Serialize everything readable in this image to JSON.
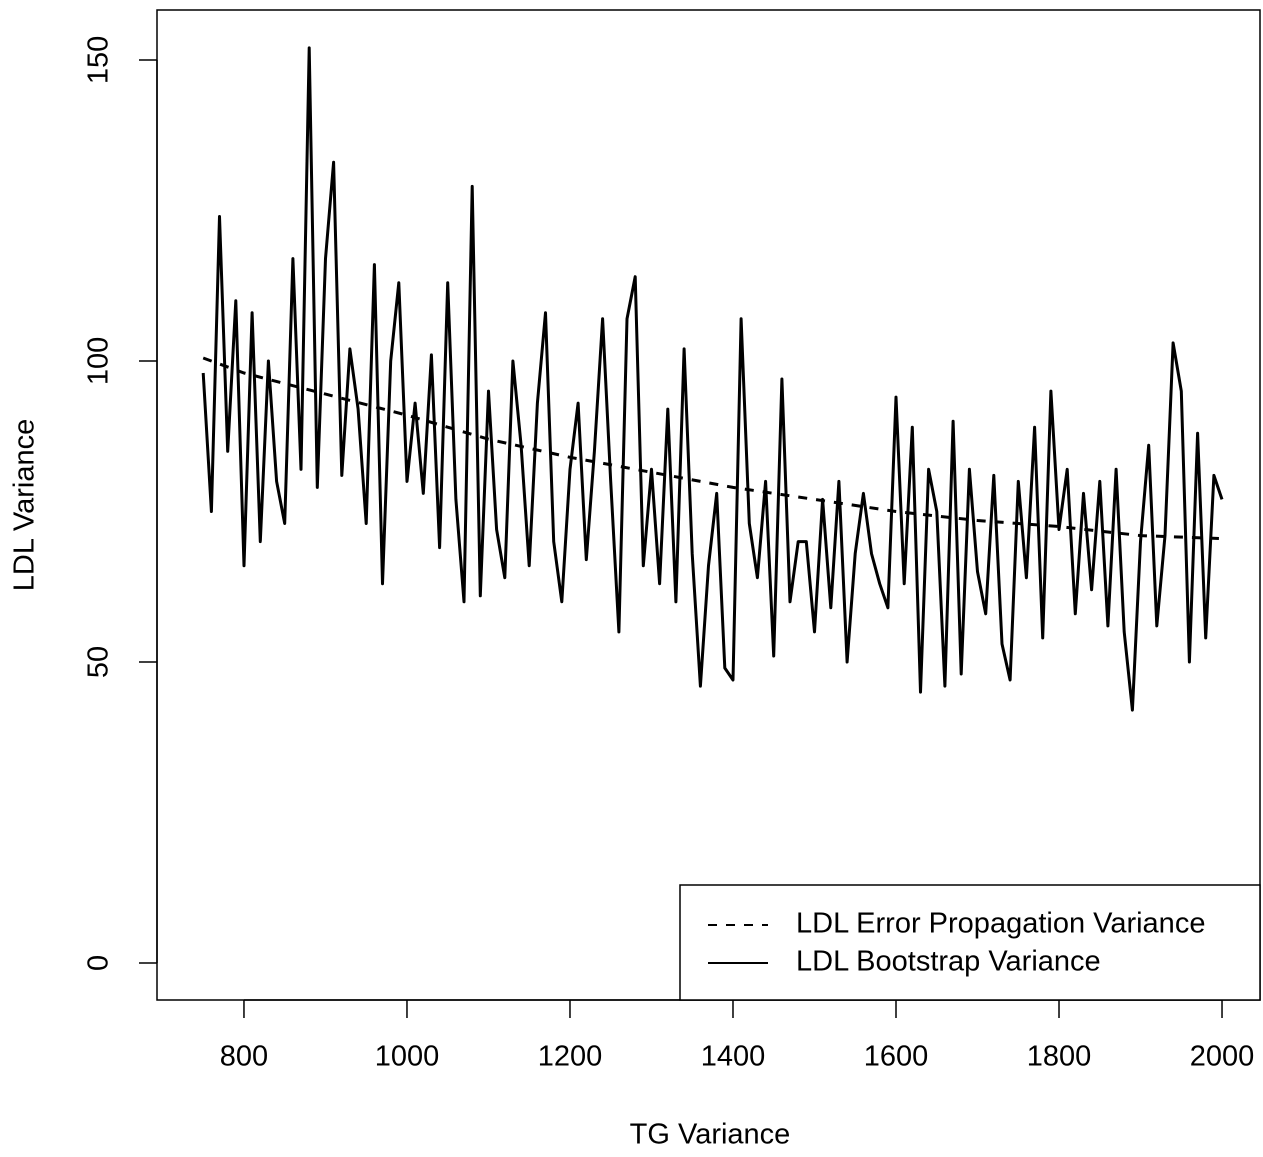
{
  "chart_data": {
    "type": "line",
    "xlabel": "TG Variance",
    "ylabel": "LDL Variance",
    "xlim": [
      693.3,
      2046.6
    ],
    "ylim": [
      -6.15,
      158.3
    ],
    "xticks": [
      800,
      1000,
      1200,
      1400,
      1600,
      1800,
      2000
    ],
    "yticks": [
      0,
      50,
      100,
      150
    ],
    "legend": "bottomright",
    "series": [
      {
        "name": "LDL Error Propagation Variance",
        "color": "#000000",
        "dash": true,
        "x": [
          750,
          800,
          900,
          1000,
          1100,
          1200,
          1300,
          1400,
          1500,
          1600,
          1700,
          1800,
          1900,
          2000
        ],
        "values": [
          100.5,
          98,
          94.5,
          91,
          87,
          84,
          81.5,
          79,
          77,
          75,
          73.5,
          72.5,
          71,
          70.5
        ]
      },
      {
        "name": "LDL Bootstrap Variance",
        "color": "#000000",
        "dash": false,
        "x": [
          750,
          760,
          770,
          780,
          790,
          800,
          810,
          820,
          830,
          840,
          850,
          860,
          870,
          880,
          890,
          900,
          910,
          920,
          930,
          940,
          950,
          960,
          970,
          980,
          990,
          1000,
          1010,
          1020,
          1030,
          1040,
          1050,
          1060,
          1070,
          1080,
          1090,
          1100,
          1110,
          1120,
          1130,
          1140,
          1150,
          1160,
          1170,
          1180,
          1190,
          1200,
          1210,
          1220,
          1230,
          1240,
          1250,
          1260,
          1270,
          1280,
          1290,
          1300,
          1310,
          1320,
          1330,
          1340,
          1350,
          1360,
          1370,
          1380,
          1390,
          1400,
          1410,
          1420,
          1430,
          1440,
          1450,
          1460,
          1470,
          1480,
          1490,
          1500,
          1510,
          1520,
          1530,
          1540,
          1550,
          1560,
          1570,
          1580,
          1590,
          1600,
          1610,
          1620,
          1630,
          1640,
          1650,
          1660,
          1670,
          1680,
          1690,
          1700,
          1710,
          1720,
          1730,
          1740,
          1750,
          1760,
          1770,
          1780,
          1790,
          1800,
          1810,
          1820,
          1830,
          1840,
          1850,
          1860,
          1870,
          1880,
          1890,
          1900,
          1910,
          1920,
          1930,
          1940,
          1950,
          1960,
          1970,
          1980,
          1990,
          2000
        ],
        "values": [
          98,
          75,
          124,
          85,
          110,
          66,
          108,
          70,
          100,
          80,
          73,
          117,
          82,
          152,
          79,
          117,
          133,
          81,
          102,
          92,
          73,
          116,
          63,
          100,
          113,
          80,
          93,
          78,
          101,
          69,
          113,
          77,
          60,
          129,
          61,
          95,
          72,
          64,
          100,
          86,
          66,
          93,
          108,
          70,
          60,
          82,
          93,
          67,
          85,
          107,
          80,
          55,
          107,
          114,
          66,
          82,
          63,
          92,
          60,
          102,
          68,
          46,
          66,
          78,
          49,
          47,
          107,
          73,
          64,
          80,
          51,
          97,
          60,
          70,
          70,
          55,
          77,
          59,
          80,
          50,
          68,
          78,
          68,
          63,
          59,
          94,
          63,
          89,
          45,
          82,
          75,
          46,
          90,
          48,
          82,
          65,
          58,
          81,
          53,
          47,
          80,
          64,
          89,
          54,
          95,
          72,
          82,
          58,
          78,
          62,
          80,
          56,
          82,
          55,
          42,
          70,
          86,
          56,
          71,
          103,
          95,
          50,
          88,
          54,
          81,
          77
        ]
      }
    ]
  }
}
